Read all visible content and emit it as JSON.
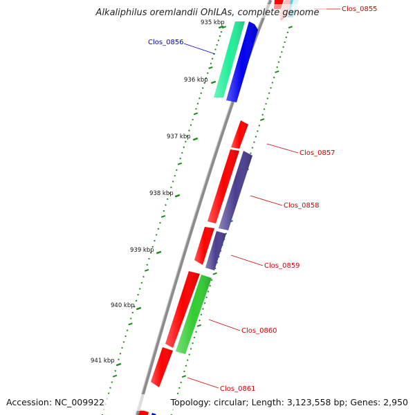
{
  "title": "Alkaliphilus oremlandii OhILAs, complete genome",
  "footer": {
    "accession": "Accession: NC_009922",
    "summary": "Topology: circular; Length: 3,123,558 bp; Genes: 2,950"
  },
  "ticks": [
    {
      "label": "935 kbp"
    },
    {
      "label": "936 kbp"
    },
    {
      "label": "937 kbp"
    },
    {
      "label": "938 kbp"
    },
    {
      "label": "939 kbp"
    },
    {
      "label": "940 kbp"
    },
    {
      "label": "941 kbp"
    }
  ],
  "genes": [
    {
      "label": "Clos_0855",
      "color": "#ff0000",
      "strand": "outer-forward"
    },
    {
      "label": "Clos_0856",
      "color": "#0000ee",
      "strand": "outer-forward",
      "selected": true
    },
    {
      "label": "Clos_0857",
      "color": "#ff0000",
      "strand": "forward"
    },
    {
      "label": "Clos_0858",
      "color": "#4b3f8f",
      "strand": "forward"
    },
    {
      "label": "Clos_0859",
      "color": "#4b3f8f",
      "strand": "forward"
    },
    {
      "label": "Clos_0860",
      "color": "#33cc33",
      "strand": "forward"
    },
    {
      "label": "Clos_0861",
      "color": "#ff0000",
      "strand": "forward"
    }
  ],
  "colors": {
    "backbone": "#8c8c8c",
    "tick": "#1a8a1a",
    "label_line": "#cc0000",
    "selected_label": "#0000cc",
    "teal_gene": "#22ee99",
    "cyan_gene": "#66ccdd",
    "pink_gene": "#ffbbbb"
  }
}
